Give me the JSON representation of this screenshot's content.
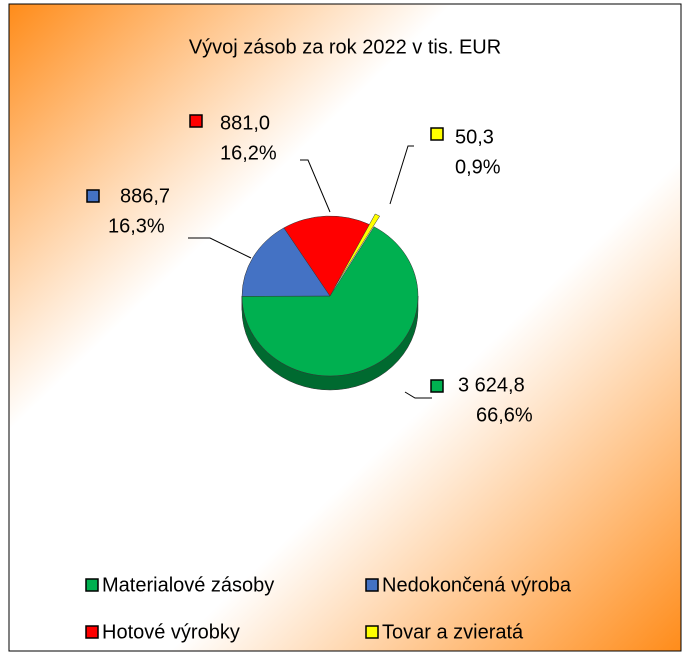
{
  "chart_data": {
    "type": "pie3d",
    "title": "Vývoj zásob za rok 2022 v tis. EUR",
    "categories": [
      "Materialové zásoby",
      "Nedokončená výroba",
      "Hotové výrobky",
      "Tovar a zvieratá"
    ],
    "values": [
      3624.8,
      886.7,
      881.0,
      50.3
    ],
    "value_labels": [
      "3 624,8",
      "886,7",
      "881,0",
      "50,3"
    ],
    "percent_labels": [
      "66,6%",
      "16,3%",
      "16,2%",
      "0,9%"
    ],
    "colors": [
      "#00b050",
      "#4472c4",
      "#ff0000",
      "#ffff00"
    ],
    "legend": "bottom"
  }
}
